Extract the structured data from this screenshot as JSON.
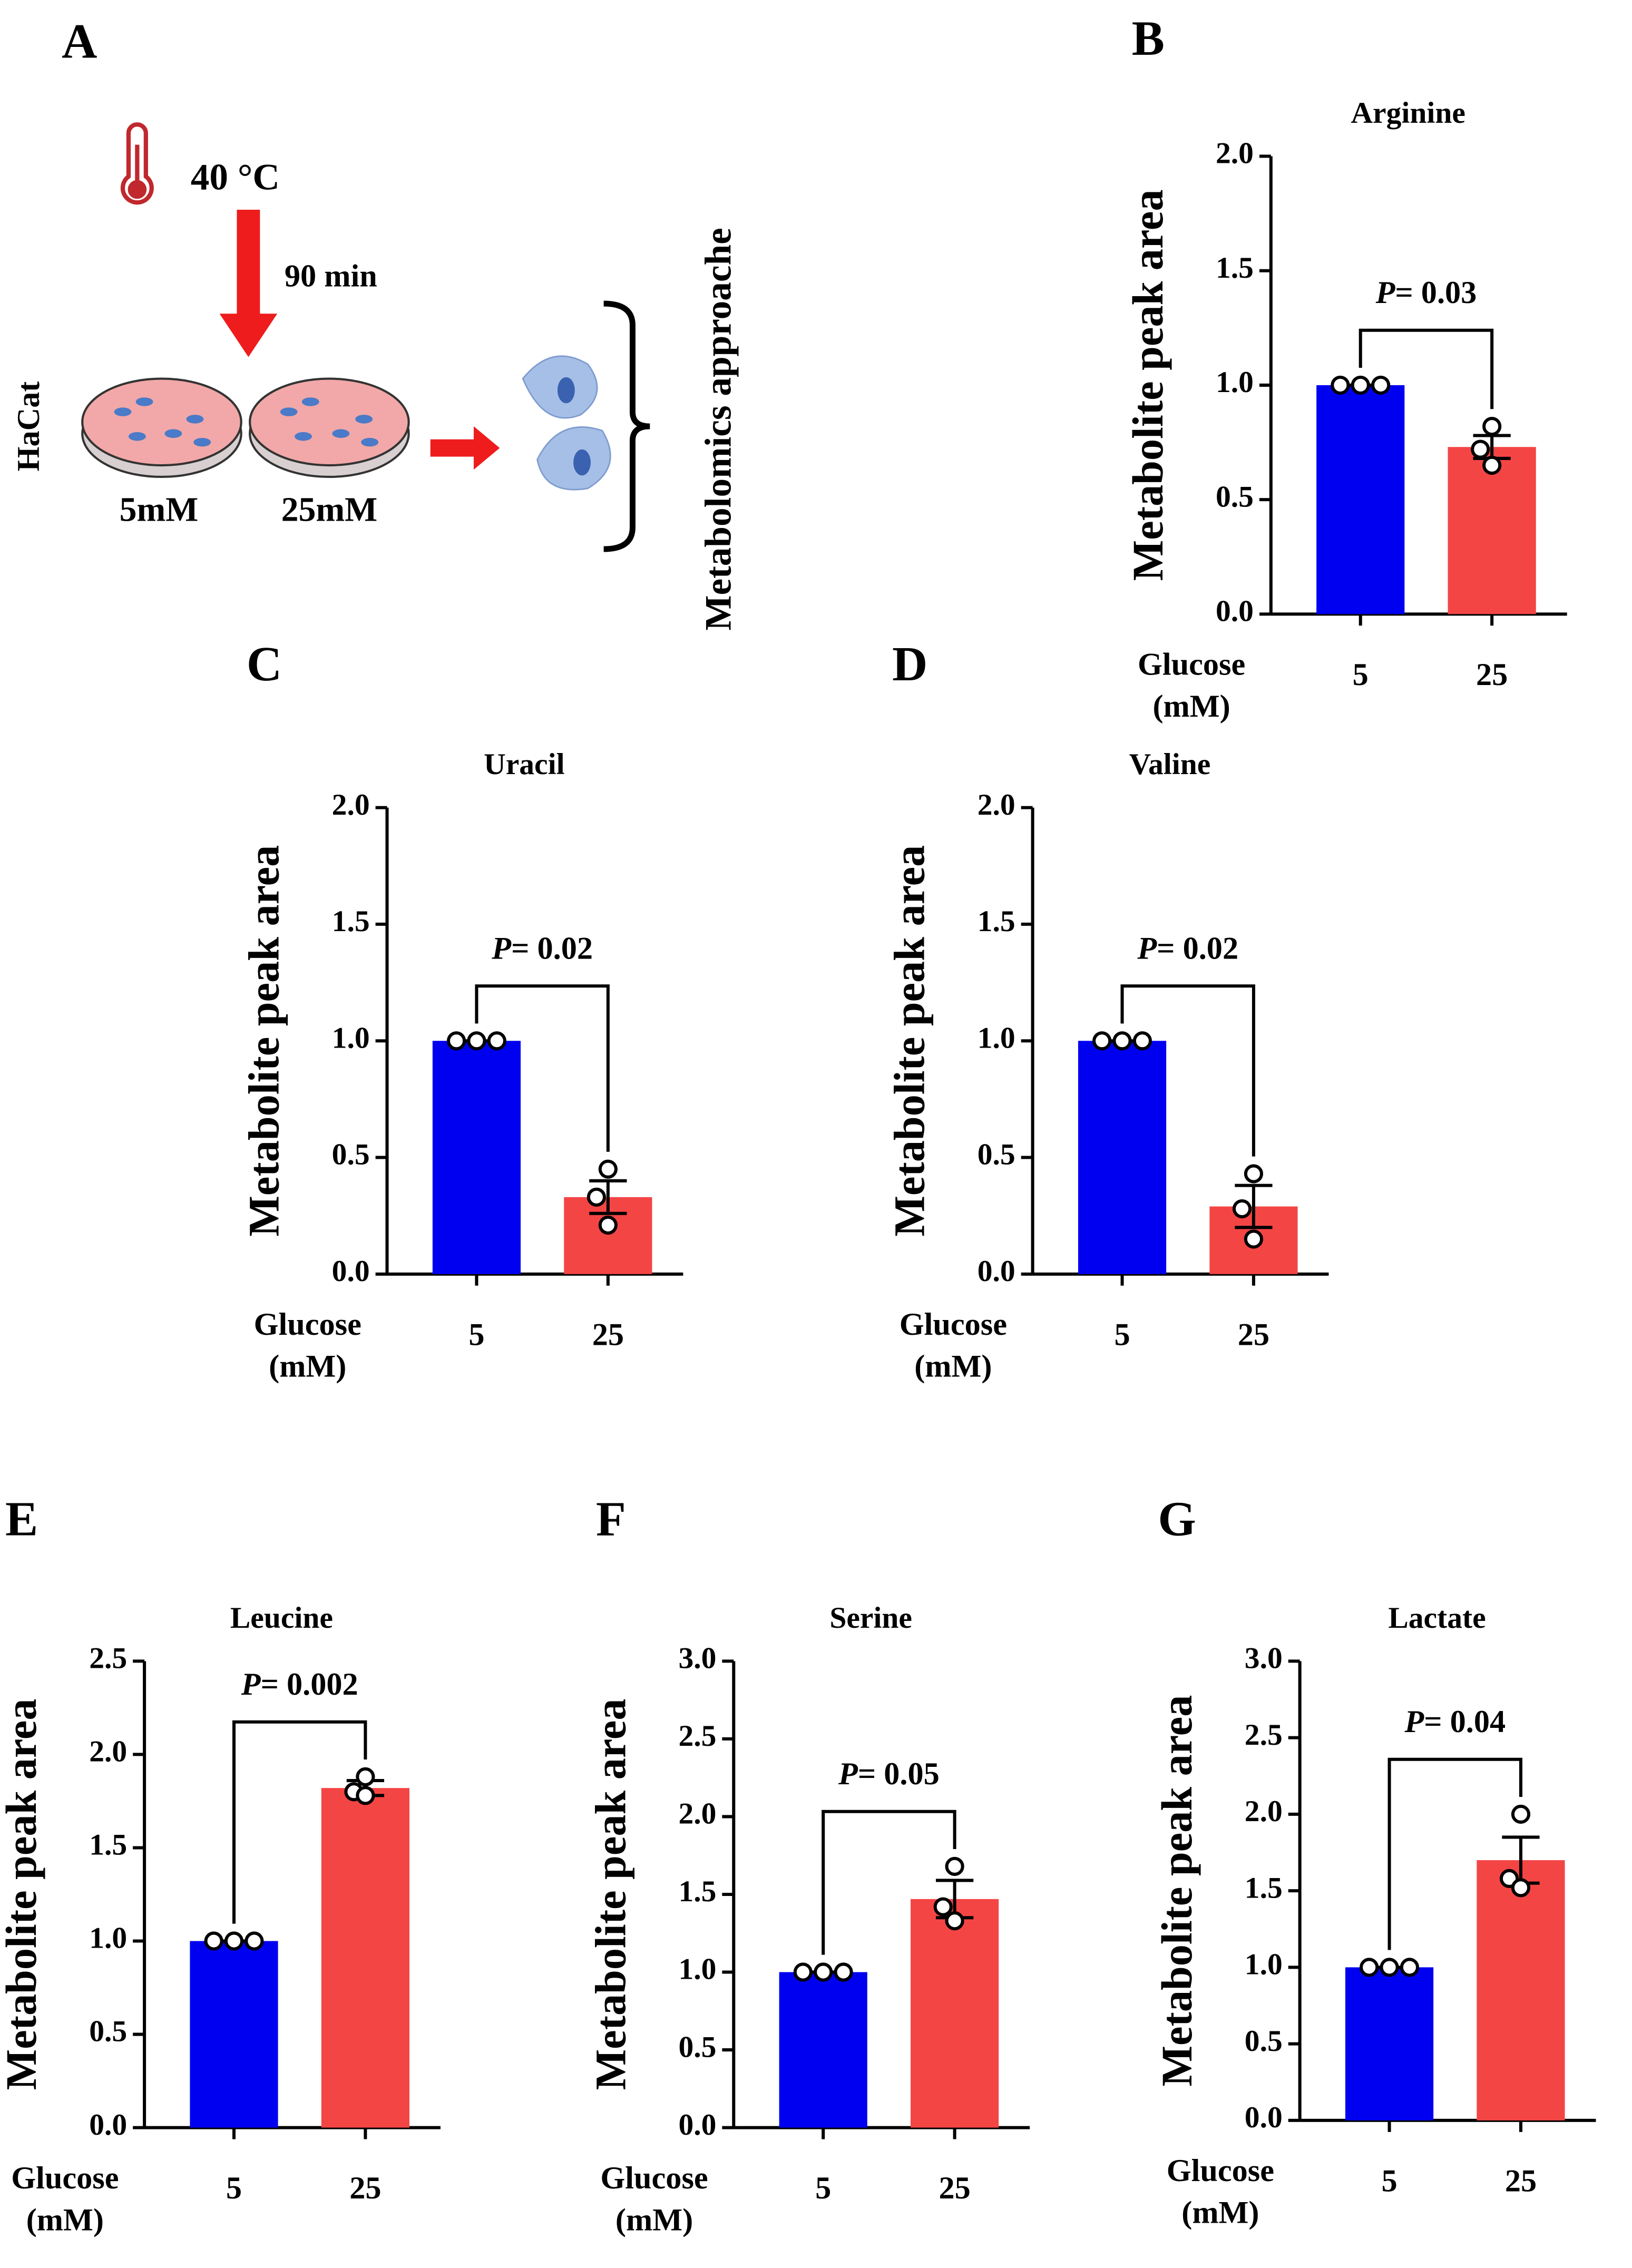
{
  "diagram": {
    "panel": "A",
    "temperature": "40 °C",
    "duration": "90 min",
    "cell_line": "HaCat",
    "dishes": [
      "5mM",
      "25mM"
    ],
    "output": "Metabolomics approache"
  },
  "chart_data": [
    {
      "type": "bar",
      "panel": "B",
      "title": "Arginine",
      "ylabel": "Metabolite peak area",
      "xlabel": [
        "Glucose",
        "(mM)"
      ],
      "categories": [
        "5",
        "25"
      ],
      "values": [
        1.0,
        0.73
      ],
      "errors": [
        0.0,
        0.05
      ],
      "points": [
        [
          1.0,
          1.0,
          1.0
        ],
        [
          0.82,
          0.72,
          0.65
        ]
      ],
      "colors": [
        "#0000f0",
        "#f44545"
      ],
      "annotation": "P= 0.03",
      "ylim": [
        0,
        2
      ],
      "yticks": [
        {
          "value": 0,
          "label": "0.0"
        },
        {
          "value": 0.5,
          "label": "0.5"
        },
        {
          "value": 1,
          "label": "1.0"
        },
        {
          "value": 1.5,
          "label": "1.5"
        },
        {
          "value": 2,
          "label": "2.0"
        }
      ]
    },
    {
      "type": "bar",
      "panel": "C",
      "title": "Uracil",
      "ylabel": "Metabolite peak area",
      "xlabel": [
        "Glucose",
        "(mM)"
      ],
      "categories": [
        "5",
        "25"
      ],
      "values": [
        1.0,
        0.33
      ],
      "errors": [
        0.0,
        0.07
      ],
      "points": [
        [
          1.0,
          1.0,
          1.0
        ],
        [
          0.45,
          0.33,
          0.21
        ]
      ],
      "colors": [
        "#0000f0",
        "#f44545"
      ],
      "annotation": "P= 0.02",
      "ylim": [
        0,
        2
      ],
      "yticks": [
        {
          "value": 0,
          "label": "0.0"
        },
        {
          "value": 0.5,
          "label": "0.5"
        },
        {
          "value": 1,
          "label": "1.0"
        },
        {
          "value": 1.5,
          "label": "1.5"
        },
        {
          "value": 2,
          "label": "2.0"
        }
      ]
    },
    {
      "type": "bar",
      "panel": "D",
      "title": "Valine",
      "ylabel": "Metabolite peak area",
      "xlabel": [
        "Glucose",
        "(mM)"
      ],
      "categories": [
        "5",
        "25"
      ],
      "values": [
        1.0,
        0.29
      ],
      "errors": [
        0.0,
        0.09
      ],
      "points": [
        [
          1.0,
          1.0,
          1.0
        ],
        [
          0.43,
          0.28,
          0.15
        ]
      ],
      "colors": [
        "#0000f0",
        "#f44545"
      ],
      "annotation": "P= 0.02",
      "ylim": [
        0,
        2
      ],
      "yticks": [
        {
          "value": 0,
          "label": "0.0"
        },
        {
          "value": 0.5,
          "label": "0.5"
        },
        {
          "value": 1,
          "label": "1.0"
        },
        {
          "value": 1.5,
          "label": "1.5"
        },
        {
          "value": 2,
          "label": "2.0"
        }
      ]
    },
    {
      "type": "bar",
      "panel": "E",
      "title": "Leucine",
      "ylabel": "Metabolite peak area",
      "xlabel": [
        "Glucose",
        "(mM)"
      ],
      "categories": [
        "5",
        "25"
      ],
      "values": [
        1.0,
        1.82
      ],
      "errors": [
        0.0,
        0.04
      ],
      "points": [
        [
          1.0,
          1.0,
          1.0
        ],
        [
          1.88,
          1.8,
          1.78
        ]
      ],
      "colors": [
        "#0000f0",
        "#f44545"
      ],
      "annotation": "P= 0.002",
      "ylim": [
        0,
        2.5
      ],
      "yticks": [
        {
          "value": 0,
          "label": "0.0"
        },
        {
          "value": 0.5,
          "label": "0.5"
        },
        {
          "value": 1,
          "label": "1.0"
        },
        {
          "value": 1.5,
          "label": "1.5"
        },
        {
          "value": 2,
          "label": "2.0"
        },
        {
          "value": 2.5,
          "label": "2.5"
        }
      ]
    },
    {
      "type": "bar",
      "panel": "F",
      "title": "Serine",
      "ylabel": "Metabolite peak area",
      "xlabel": [
        "Glucose",
        "(mM)"
      ],
      "categories": [
        "5",
        "25"
      ],
      "values": [
        1.0,
        1.47
      ],
      "errors": [
        0.0,
        0.12
      ],
      "points": [
        [
          1.0,
          1.0,
          1.0
        ],
        [
          1.68,
          1.42,
          1.33
        ]
      ],
      "colors": [
        "#0000f0",
        "#f44545"
      ],
      "annotation": "P= 0.05",
      "ylim": [
        0,
        3
      ],
      "yticks": [
        {
          "value": 0,
          "label": "0.0"
        },
        {
          "value": 0.5,
          "label": "0.5"
        },
        {
          "value": 1,
          "label": "1.0"
        },
        {
          "value": 1.5,
          "label": "1.5"
        },
        {
          "value": 2,
          "label": "2.0"
        },
        {
          "value": 2.5,
          "label": "2.5"
        },
        {
          "value": 3,
          "label": "3.0"
        }
      ]
    },
    {
      "type": "bar",
      "panel": "G",
      "title": "Lactate",
      "ylabel": "Metabolite peak area",
      "xlabel": [
        "Glucose",
        "(mM)"
      ],
      "categories": [
        "5",
        "25"
      ],
      "values": [
        1.0,
        1.7
      ],
      "errors": [
        0.0,
        0.15
      ],
      "points": [
        [
          1.0,
          1.0,
          1.0
        ],
        [
          2.0,
          1.58,
          1.52
        ]
      ],
      "colors": [
        "#0000f0",
        "#f44545"
      ],
      "annotation": "P= 0.04",
      "ylim": [
        0,
        3
      ],
      "yticks": [
        {
          "value": 0,
          "label": "0.0"
        },
        {
          "value": 0.5,
          "label": "0.5"
        },
        {
          "value": 1,
          "label": "1.0"
        },
        {
          "value": 1.5,
          "label": "1.5"
        },
        {
          "value": 2,
          "label": "2.0"
        },
        {
          "value": 2.5,
          "label": "2.5"
        },
        {
          "value": 3,
          "label": "3.0"
        }
      ]
    }
  ]
}
